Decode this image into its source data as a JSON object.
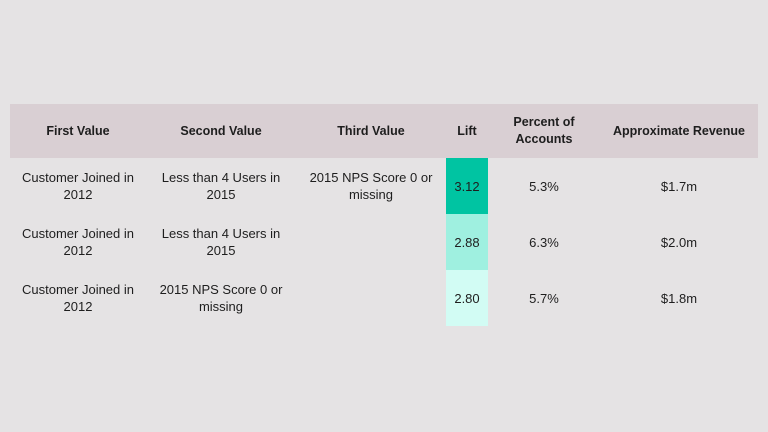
{
  "table": {
    "headers": [
      "First Value",
      "Second Value",
      "Third Value",
      "Lift",
      "Percent of Accounts",
      "Approximate Revenue"
    ],
    "rows": [
      {
        "first": "Customer Joined in 2012",
        "second": "Less than 4 Users in 2015",
        "third": "2015 NPS Score 0 or missing",
        "lift": "3.12",
        "percent": "5.3%",
        "revenue": "$1.7m",
        "lift_color": "#00c4a2"
      },
      {
        "first": "Customer Joined in 2012",
        "second": "Less than 4 Users in 2015",
        "third": "",
        "lift": "2.88",
        "percent": "6.3%",
        "revenue": "$2.0m",
        "lift_color": "#9ff0e0"
      },
      {
        "first": "Customer Joined in 2012",
        "second": "2015 NPS Score 0 or missing",
        "third": "",
        "lift": "2.80",
        "percent": "5.7%",
        "revenue": "$1.8m",
        "lift_color": "#d2fcf4"
      }
    ]
  }
}
